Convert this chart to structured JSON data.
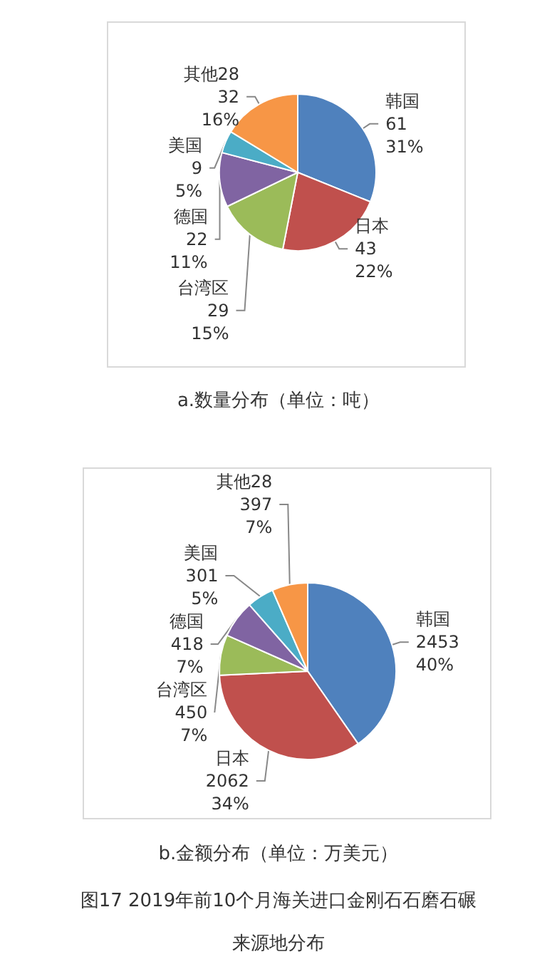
{
  "chart_data": [
    {
      "type": "pie",
      "title": "a.数量分布（单位：吨）",
      "categories": [
        "韩国",
        "日本",
        "台湾区",
        "德国",
        "美国",
        "其他28"
      ],
      "values": [
        61,
        43,
        29,
        22,
        9,
        32
      ],
      "colors": [
        "#4f81bd",
        "#c0504d",
        "#9bbb59",
        "#8064a2",
        "#4bacc6",
        "#f79646"
      ],
      "value_labels": [
        "61\n31%",
        "43\n22%",
        "29\n15%",
        "22\n11%",
        "9\n5%",
        "32\n16%"
      ],
      "legend": false
    },
    {
      "type": "pie",
      "title": "b.金额分布（单位：万美元）",
      "categories": [
        "韩国",
        "日本",
        "台湾区",
        "德国",
        "美国",
        "其他28"
      ],
      "values": [
        2453,
        2062,
        450,
        418,
        301,
        397
      ],
      "colors": [
        "#4f81bd",
        "#c0504d",
        "#9bbb59",
        "#8064a2",
        "#4bacc6",
        "#f79646"
      ],
      "value_labels": [
        "2453\n40%",
        "2062\n34%",
        "450\n7%",
        "418\n7%",
        "301\n5%",
        "397\n7%"
      ],
      "legend": false,
      "annotations": [
        "图17  2019年前10个月海关进口金刚石石磨石碾来源地分布"
      ]
    }
  ]
}
